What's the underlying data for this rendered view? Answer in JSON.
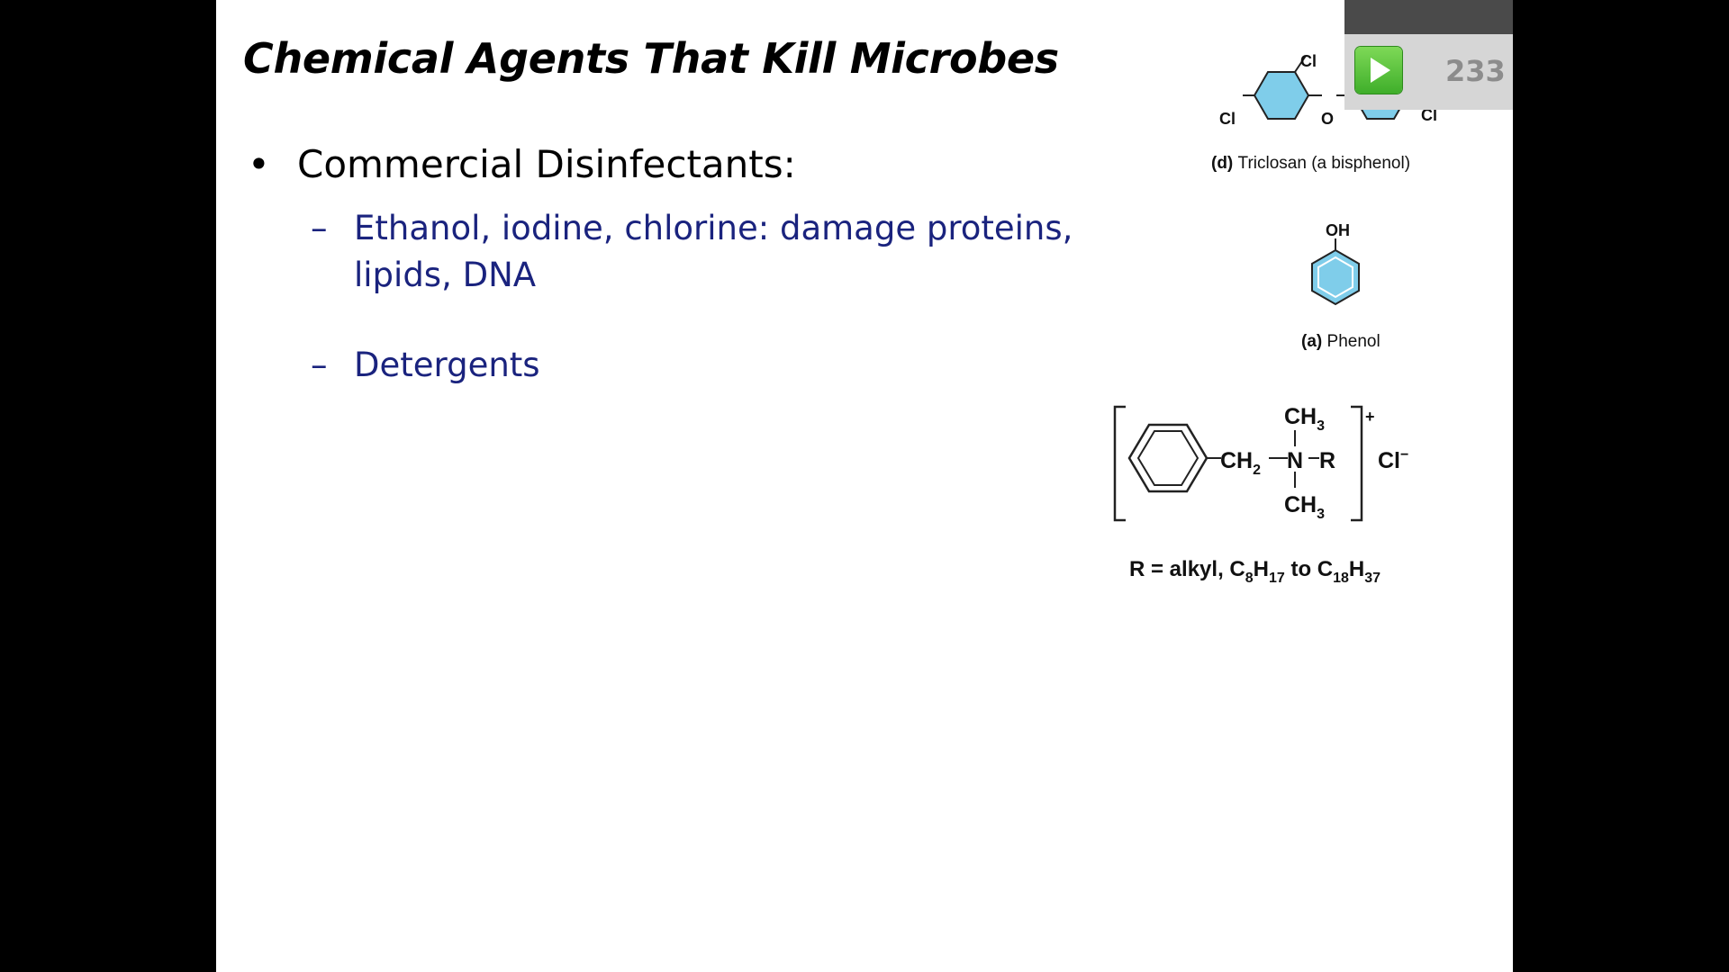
{
  "slide": {
    "title": "Chemical Agents That Kill Microbes",
    "bullet_char": "•",
    "bullet": "Commercial Disinfectants:",
    "dash_char": "–",
    "sub_items": [
      "Ethanol, iodine, chlorine: damage proteins, lipids, DNA",
      "Detergents"
    ]
  },
  "diagram": {
    "triclosan": {
      "atom_cl": "Cl",
      "atom_o": "O",
      "caption_letter": "(d)",
      "caption_name": "Triclosan (a bisphenol)"
    },
    "phenol": {
      "atom_oh": "OH",
      "caption_letter": "(a)",
      "caption_name": "Phenol"
    },
    "quat": {
      "ch": "CH",
      "sub_2": "2",
      "sub_3": "3",
      "n": "N",
      "r": "R",
      "charge_plus": "+",
      "chloride": "Cl",
      "chloride_charge": "−",
      "footnote": {
        "r_eq": "R = alkyl, C",
        "s1": "8",
        "h1": "H",
        "s2": "17",
        "to": " to C",
        "s3": "18",
        "h2": "H",
        "s4": "37"
      }
    },
    "ring_color": "#7fcdea"
  },
  "player": {
    "slide_number": "233",
    "play_icon": "play-icon",
    "accent": "#4cc33a"
  }
}
